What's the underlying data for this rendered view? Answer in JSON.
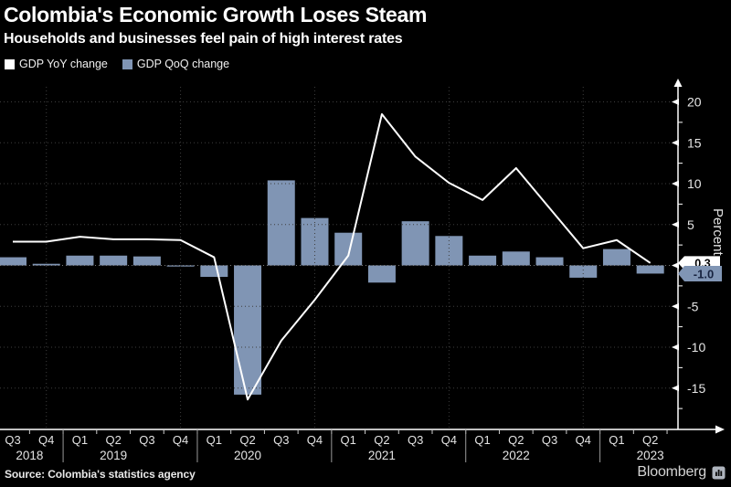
{
  "header": {
    "title": "Colombia's Economic Growth Loses Steam",
    "subtitle": "Households and businesses feel pain of high interest rates"
  },
  "legend": [
    {
      "label": "GDP YoY change",
      "swatch": "#ffffff"
    },
    {
      "label": "GDP QoQ change",
      "swatch": "#8095b4"
    }
  ],
  "footer": {
    "source": "Source: Colombia's statistics agency",
    "brand": "Bloomberg"
  },
  "chart_data": {
    "type": "bar",
    "title": "Colombia's Economic Growth Loses Steam",
    "x": [
      "Q3 2018",
      "Q4 2018",
      "Q1 2019",
      "Q2 2019",
      "Q3 2019",
      "Q4 2019",
      "Q1 2020",
      "Q2 2020",
      "Q3 2020",
      "Q4 2020",
      "Q1 2021",
      "Q2 2021",
      "Q3 2021",
      "Q4 2021",
      "Q1 2022",
      "Q2 2022",
      "Q3 2022",
      "Q4 2022",
      "Q1 2023",
      "Q2 2023"
    ],
    "quarter_labels": [
      "Q3",
      "Q4",
      "Q1",
      "Q2",
      "Q3",
      "Q4",
      "Q1",
      "Q2",
      "Q3",
      "Q4",
      "Q1",
      "Q2",
      "Q3",
      "Q4",
      "Q1",
      "Q2",
      "Q3",
      "Q4",
      "Q1",
      "Q2"
    ],
    "year_groups": [
      {
        "label": "2018",
        "count": 2
      },
      {
        "label": "2019",
        "count": 4
      },
      {
        "label": "2020",
        "count": 4
      },
      {
        "label": "2021",
        "count": 4
      },
      {
        "label": "2022",
        "count": 4
      },
      {
        "label": "2023",
        "count": 2
      }
    ],
    "series": [
      {
        "name": "GDP YoY change",
        "type": "line",
        "color": "#ffffff",
        "values": [
          2.9,
          2.9,
          3.5,
          3.2,
          3.2,
          3.1,
          1.0,
          -16.4,
          -9.2,
          -4.2,
          1.2,
          18.5,
          13.3,
          10.1,
          8.0,
          11.9,
          7.0,
          2.1,
          3.1,
          0.3
        ]
      },
      {
        "name": "GDP QoQ change",
        "type": "bar",
        "color": "#8095b4",
        "values": [
          1.0,
          0.2,
          1.2,
          1.2,
          1.1,
          -0.1,
          -1.4,
          -15.8,
          10.4,
          5.8,
          4.0,
          -2.1,
          5.4,
          3.6,
          1.2,
          1.7,
          1.0,
          -1.5,
          2.0,
          -1.0
        ]
      }
    ],
    "end_labels": {
      "yoy": "0.3",
      "qoq": "-1.0"
    },
    "ylabel": "Percent",
    "yticks": [
      20,
      15,
      10,
      5,
      0,
      -5,
      -10,
      -15
    ],
    "minor_ticks": [
      17.5,
      12.5,
      7.5,
      2.5,
      -2.5,
      -7.5,
      -12.5,
      -17.5
    ],
    "ylim": [
      -20.1,
      21.8
    ],
    "grid": "dotted",
    "legend_position": "top-left"
  }
}
